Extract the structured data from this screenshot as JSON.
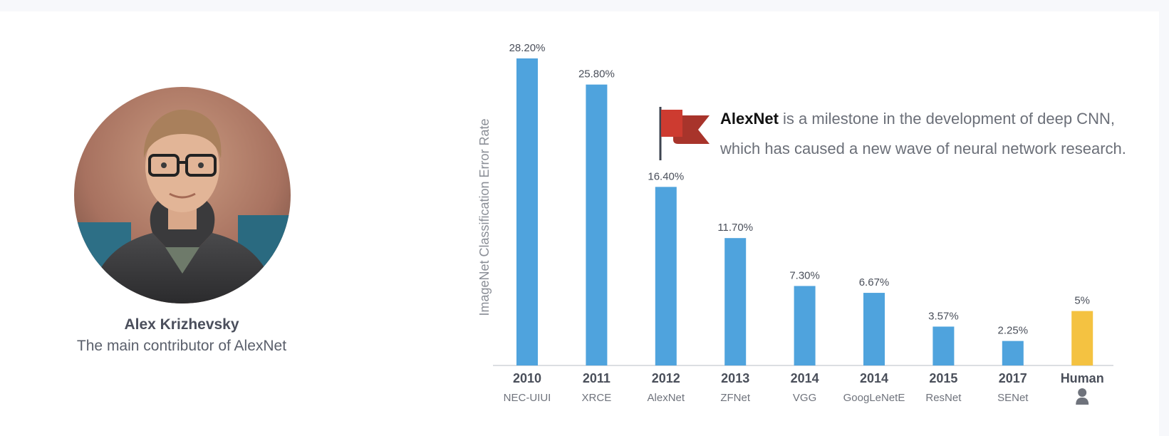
{
  "colors": {
    "bar": "#4fa3dd",
    "human_bar": "#f4c241",
    "axis": "#cfd3d9",
    "flag": "#cd3b30",
    "flag_dark": "#a8342b",
    "pole": "#3e4450"
  },
  "profile": {
    "name": "Alex Krizhevsky",
    "caption": "The main contributor of AlexNet"
  },
  "note": {
    "highlight": "AlexNet",
    "text_line1": " is a milestone in the development of deep CNN,",
    "text_line2": "which has caused a new wave of neural network research.",
    "icon": "flag-icon"
  },
  "chart_data": {
    "type": "bar",
    "ylabel": "ImageNet Classification Error Rate",
    "xlabel": "",
    "ylim": [
      0,
      28.2
    ],
    "grid": false,
    "categories": [
      "2010",
      "2011",
      "2012",
      "2013",
      "2014",
      "2014",
      "2015",
      "2017",
      "Human"
    ],
    "sublabels": [
      "NEC-UIUI",
      "XRCE",
      "AlexNet",
      "ZFNet",
      "VGG",
      "GoogLeNetE",
      "ResNet",
      "SENet",
      "person-icon"
    ],
    "values": [
      28.2,
      25.8,
      16.4,
      11.7,
      7.3,
      6.67,
      3.57,
      2.25,
      5
    ],
    "value_labels": [
      "28.20%",
      "25.80%",
      "16.40%",
      "11.70%",
      "7.30%",
      "6.67%",
      "3.57%",
      "2.25%",
      "5%"
    ],
    "highlight_category": "Human"
  }
}
